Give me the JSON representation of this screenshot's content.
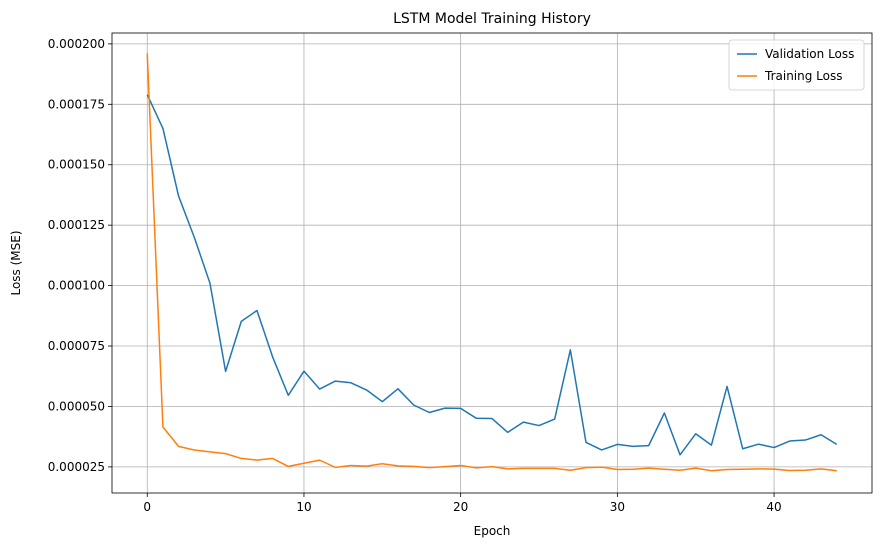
{
  "chart_data": {
    "type": "line",
    "title": "LSTM Model Training History",
    "xlabel": "Epoch",
    "ylabel": "Loss (MSE)",
    "xlim": [
      -2.25,
      46.25
    ],
    "ylim": [
      1.42e-05,
      0.0002045
    ],
    "x_ticks": [
      0,
      10,
      20,
      30,
      40
    ],
    "x_tick_labels": [
      "0",
      "10",
      "20",
      "30",
      "40"
    ],
    "y_ticks": [
      2.5e-05,
      5e-05,
      7.5e-05,
      0.0001,
      0.000125,
      0.00015,
      0.000175,
      0.0002
    ],
    "y_tick_labels": [
      "0.000025",
      "0.000050",
      "0.000075",
      "0.000100",
      "0.000125",
      "0.000150",
      "0.000175",
      "0.000200"
    ],
    "grid": true,
    "legend_position": "top-right",
    "x": [
      0,
      1,
      2,
      3,
      4,
      5,
      6,
      7,
      8,
      9,
      10,
      11,
      12,
      13,
      14,
      15,
      16,
      17,
      18,
      19,
      20,
      21,
      22,
      23,
      24,
      25,
      26,
      27,
      28,
      29,
      30,
      31,
      32,
      33,
      34,
      35,
      36,
      37,
      38,
      39,
      40,
      41,
      42,
      43,
      44
    ],
    "series": [
      {
        "name": "Validation Loss",
        "color": "#1f77b4",
        "values": [
          0.000179,
          0.000165,
          0.000137,
          0.00012,
          0.000101,
          6.45e-05,
          8.52e-05,
          8.97e-05,
          7.05e-05,
          5.46e-05,
          6.46e-05,
          5.72e-05,
          6.05e-05,
          5.98e-05,
          5.68e-05,
          5.2e-05,
          5.73e-05,
          5.06e-05,
          4.75e-05,
          4.93e-05,
          4.92e-05,
          4.51e-05,
          4.5e-05,
          3.93e-05,
          4.35e-05,
          4.21e-05,
          4.48e-05,
          7.34e-05,
          3.51e-05,
          3.2e-05,
          3.43e-05,
          3.35e-05,
          3.38e-05,
          4.73e-05,
          3e-05,
          3.87e-05,
          3.4e-05,
          5.83e-05,
          3.25e-05,
          3.44e-05,
          3.3e-05,
          3.57e-05,
          3.61e-05,
          3.83e-05,
          3.43e-05
        ]
      },
      {
        "name": "Training Loss",
        "color": "#ff7f0e",
        "values": [
          0.000196,
          4.15e-05,
          3.35e-05,
          3.2e-05,
          3.12e-05,
          3.05e-05,
          2.85e-05,
          2.78e-05,
          2.85e-05,
          2.52e-05,
          2.65e-05,
          2.78e-05,
          2.48e-05,
          2.56e-05,
          2.53e-05,
          2.63e-05,
          2.54e-05,
          2.52e-05,
          2.47e-05,
          2.51e-05,
          2.56e-05,
          2.46e-05,
          2.51e-05,
          2.42e-05,
          2.44e-05,
          2.44e-05,
          2.44e-05,
          2.36e-05,
          2.47e-05,
          2.49e-05,
          2.39e-05,
          2.4e-05,
          2.45e-05,
          2.4e-05,
          2.36e-05,
          2.45e-05,
          2.34e-05,
          2.39e-05,
          2.4e-05,
          2.42e-05,
          2.41e-05,
          2.35e-05,
          2.36e-05,
          2.42e-05,
          2.34e-05
        ]
      }
    ]
  }
}
